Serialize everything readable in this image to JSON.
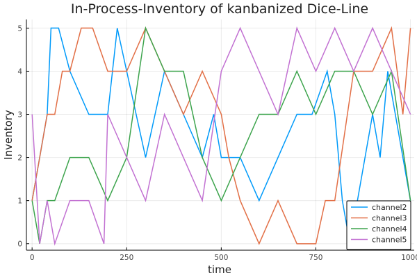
{
  "chart_data": {
    "type": "line",
    "title": "In-Process-Inventory of kanbanized Dice-Line",
    "xlabel": "time",
    "ylabel": "Inventory",
    "xlim": [
      -15,
      1010
    ],
    "ylim": [
      -0.15,
      5.2
    ],
    "xticks": [
      0,
      250,
      500,
      750,
      1000
    ],
    "yticks": [
      0,
      1,
      2,
      3,
      4,
      5
    ],
    "grid": true,
    "legend_position": "bottom-right",
    "series": [
      {
        "name": "channel2",
        "color": "#009AFA",
        "x": [
          0,
          20,
          40,
          50,
          70,
          100,
          150,
          200,
          225,
          250,
          300,
          350,
          400,
          450,
          480,
          500,
          550,
          600,
          650,
          700,
          740,
          780,
          800,
          820,
          840,
          860,
          880,
          900,
          920,
          940,
          960,
          980,
          1000
        ],
        "y": [
          1,
          2,
          3,
          5,
          5,
          4,
          3,
          3,
          5,
          4,
          2,
          4,
          3,
          2,
          3,
          2,
          2,
          1,
          2,
          3,
          3,
          4,
          3,
          1,
          0,
          1,
          2,
          3,
          2,
          4,
          3,
          2,
          1
        ]
      },
      {
        "name": "channel3",
        "color": "#E26F46",
        "x": [
          0,
          20,
          40,
          60,
          80,
          100,
          130,
          160,
          200,
          250,
          300,
          350,
          400,
          450,
          500,
          520,
          550,
          600,
          650,
          700,
          750,
          775,
          800,
          850,
          900,
          950,
          980,
          1000
        ],
        "y": [
          1,
          2,
          3,
          3,
          4,
          4,
          5,
          5,
          4,
          4,
          5,
          4,
          3,
          4,
          3,
          2,
          1,
          0,
          1,
          0,
          0,
          1,
          1,
          4,
          4,
          5,
          3,
          5
        ]
      },
      {
        "name": "channel4",
        "color": "#3DA44D",
        "x": [
          0,
          20,
          40,
          60,
          100,
          150,
          200,
          250,
          300,
          350,
          400,
          450,
          500,
          550,
          600,
          650,
          700,
          750,
          800,
          850,
          900,
          950,
          1000
        ],
        "y": [
          1,
          0,
          1,
          1,
          2,
          2,
          1,
          2,
          5,
          4,
          4,
          2,
          1,
          2,
          3,
          3,
          4,
          3,
          4,
          4,
          3,
          4,
          1
        ]
      },
      {
        "name": "channel5",
        "color": "#C271D2",
        "x": [
          0,
          20,
          40,
          60,
          100,
          150,
          190,
          200,
          250,
          300,
          350,
          400,
          450,
          500,
          550,
          600,
          650,
          700,
          750,
          800,
          850,
          900,
          950,
          1000
        ],
        "y": [
          3,
          0,
          1,
          0,
          1,
          1,
          0,
          3,
          2,
          1,
          3,
          2,
          1,
          4,
          5,
          4,
          3,
          5,
          4,
          5,
          4,
          5,
          4,
          3
        ]
      }
    ]
  }
}
